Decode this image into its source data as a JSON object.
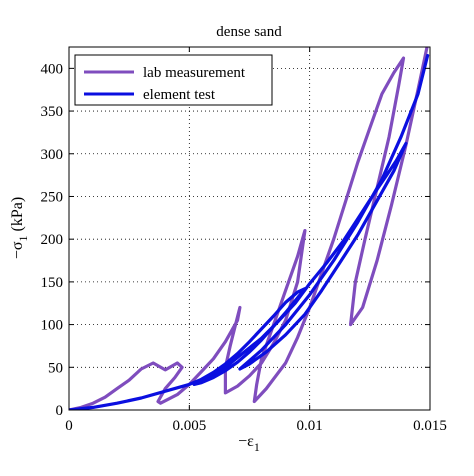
{
  "chart_data": {
    "type": "line",
    "title": "dense sand",
    "xlabel": "−ε",
    "xlabel_sub": "1",
    "ylabel": "−σ",
    "ylabel_sub": "1",
    "ylabel_unit": " (kPa)",
    "xlim": [
      0,
      0.015
    ],
    "ylim": [
      0,
      425
    ],
    "xticks": [
      0,
      0.005,
      0.01,
      0.015
    ],
    "xtick_labels": [
      "0",
      "0.005",
      "0.01",
      "0.015"
    ],
    "yticks": [
      0,
      50,
      100,
      150,
      200,
      250,
      300,
      350,
      400
    ],
    "ytick_labels": [
      "0",
      "50",
      "100",
      "150",
      "200",
      "250",
      "300",
      "350",
      "400"
    ],
    "grid": true,
    "legend_position": "top-left",
    "series": [
      {
        "name": "lab measurement",
        "color": "#7f4dbe",
        "x": [
          0,
          0.0005,
          0.001,
          0.0015,
          0.002,
          0.0025,
          0.003,
          0.0035,
          0.004,
          0.0045,
          0.0047,
          0.0044,
          0.004,
          0.0037,
          0.0038,
          0.0045,
          0.005,
          0.0055,
          0.006,
          0.0065,
          0.007,
          0.0071,
          0.0069,
          0.0067,
          0.0065,
          0.0065,
          0.007,
          0.0075,
          0.008,
          0.0085,
          0.009,
          0.0095,
          0.0098,
          0.0095,
          0.009,
          0.0085,
          0.008,
          0.0078,
          0.0077,
          0.0082,
          0.009,
          0.0095,
          0.01,
          0.0105,
          0.011,
          0.0115,
          0.012,
          0.0125,
          0.013,
          0.0135,
          0.0139,
          0.0137,
          0.0133,
          0.0128,
          0.0123,
          0.0119,
          0.0117,
          0.0122,
          0.0128,
          0.0134,
          0.014,
          0.0145,
          0.0149
        ],
        "y": [
          0,
          3,
          8,
          15,
          25,
          35,
          48,
          55,
          47,
          55,
          50,
          38,
          25,
          10,
          8,
          18,
          30,
          45,
          60,
          80,
          105,
          120,
          98,
          75,
          50,
          20,
          28,
          40,
          55,
          78,
          105,
          150,
          210,
          180,
          140,
          100,
          60,
          30,
          10,
          25,
          55,
          85,
          120,
          160,
          200,
          245,
          290,
          330,
          370,
          395,
          412,
          380,
          320,
          260,
          200,
          150,
          100,
          120,
          175,
          240,
          310,
          375,
          428
        ]
      },
      {
        "name": "element test",
        "color": "#0b0fe0",
        "x": [
          0,
          0.001,
          0.002,
          0.003,
          0.004,
          0.0045,
          0.005,
          0.0055,
          0.006,
          0.0065,
          0.007,
          0.0075,
          0.008,
          0.0085,
          0.009,
          0.0095,
          0.0098,
          0.0094,
          0.009,
          0.0085,
          0.008,
          0.0075,
          0.007,
          0.0065,
          0.006,
          0.0055,
          0.0052,
          0.0058,
          0.0065,
          0.0072,
          0.008,
          0.0087,
          0.0094,
          0.01,
          0.0107,
          0.0114,
          0.012,
          0.0126,
          0.0132,
          0.0136,
          0.014,
          0.0135,
          0.0128,
          0.012,
          0.0112,
          0.0105,
          0.0098,
          0.009,
          0.0082,
          0.0075,
          0.0071,
          0.008,
          0.009,
          0.01,
          0.011,
          0.012,
          0.013,
          0.0138,
          0.0145,
          0.0149
        ],
        "y": [
          0,
          3,
          8,
          14,
          22,
          26,
          30,
          36,
          44,
          54,
          66,
          80,
          95,
          110,
          126,
          138,
          142,
          128,
          114,
          98,
          82,
          68,
          56,
          46,
          38,
          32,
          30,
          38,
          50,
          66,
          84,
          104,
          125,
          148,
          172,
          198,
          224,
          250,
          275,
          292,
          312,
          280,
          245,
          205,
          170,
          140,
          112,
          88,
          68,
          54,
          48,
          70,
          100,
          135,
          175,
          220,
          270,
          320,
          370,
          415
        ]
      }
    ]
  }
}
